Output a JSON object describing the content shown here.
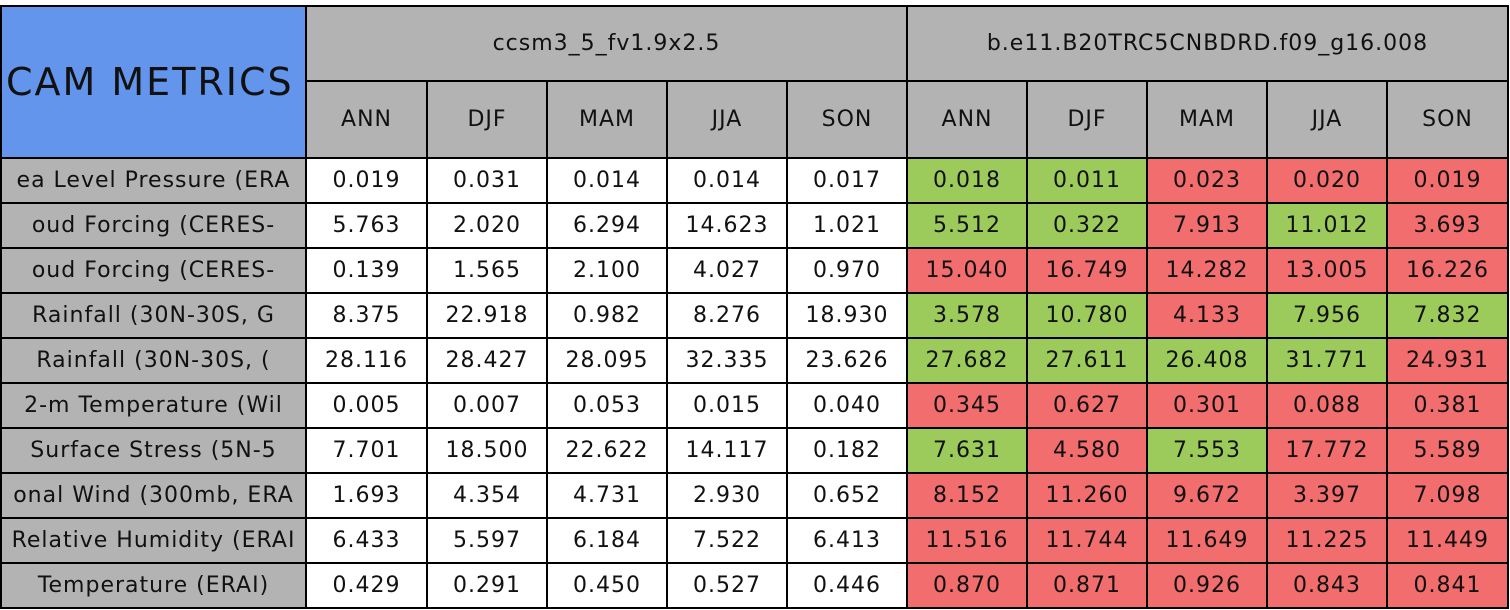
{
  "table": {
    "title": "CAM METRICS",
    "models": [
      {
        "name": "ccsm3_5_fv1.9x2.5",
        "seasons": [
          "ANN",
          "DJF",
          "MAM",
          "JJA",
          "SON"
        ]
      },
      {
        "name": "b.e11.B20TRC5CNBDRD.f09_g16.008",
        "seasons": [
          "ANN",
          "DJF",
          "MAM",
          "JJA",
          "SON"
        ]
      }
    ],
    "rows": [
      {
        "label": "ea Level Pressure (ERA",
        "values": [
          "0.019",
          "0.031",
          "0.014",
          "0.014",
          "0.017",
          "0.018",
          "0.011",
          "0.023",
          "0.020",
          "0.019"
        ],
        "colors": [
          "#ffffff",
          "#ffffff",
          "#ffffff",
          "#ffffff",
          "#ffffff",
          "#9ccb5c",
          "#9ccb5c",
          "#f26d6d",
          "#f26d6d",
          "#f26d6d"
        ]
      },
      {
        "label": "oud Forcing (CERES-",
        "values": [
          "5.763",
          "2.020",
          "6.294",
          "14.623",
          "1.021",
          "5.512",
          "0.322",
          "7.913",
          "11.012",
          "3.693"
        ],
        "colors": [
          "#ffffff",
          "#ffffff",
          "#ffffff",
          "#ffffff",
          "#ffffff",
          "#9ccb5c",
          "#9ccb5c",
          "#f26d6d",
          "#9ccb5c",
          "#f26d6d"
        ]
      },
      {
        "label": "oud Forcing (CERES-",
        "values": [
          "0.139",
          "1.565",
          "2.100",
          "4.027",
          "0.970",
          "15.040",
          "16.749",
          "14.282",
          "13.005",
          "16.226"
        ],
        "colors": [
          "#ffffff",
          "#ffffff",
          "#ffffff",
          "#ffffff",
          "#ffffff",
          "#f26d6d",
          "#f26d6d",
          "#f26d6d",
          "#f26d6d",
          "#f26d6d"
        ]
      },
      {
        "label": "Rainfall (30N-30S, G",
        "values": [
          "8.375",
          "22.918",
          "0.982",
          "8.276",
          "18.930",
          "3.578",
          "10.780",
          "4.133",
          "7.956",
          "7.832"
        ],
        "colors": [
          "#ffffff",
          "#ffffff",
          "#ffffff",
          "#ffffff",
          "#ffffff",
          "#9ccb5c",
          "#9ccb5c",
          "#f26d6d",
          "#9ccb5c",
          "#9ccb5c"
        ]
      },
      {
        "label": "Rainfall (30N-30S, (",
        "values": [
          "28.116",
          "28.427",
          "28.095",
          "32.335",
          "23.626",
          "27.682",
          "27.611",
          "26.408",
          "31.771",
          "24.931"
        ],
        "colors": [
          "#ffffff",
          "#ffffff",
          "#ffffff",
          "#ffffff",
          "#ffffff",
          "#9ccb5c",
          "#9ccb5c",
          "#9ccb5c",
          "#9ccb5c",
          "#f26d6d"
        ]
      },
      {
        "label": "2-m Temperature (Wil",
        "values": [
          "0.005",
          "0.007",
          "0.053",
          "0.015",
          "0.040",
          "0.345",
          "0.627",
          "0.301",
          "0.088",
          "0.381"
        ],
        "colors": [
          "#ffffff",
          "#ffffff",
          "#ffffff",
          "#ffffff",
          "#ffffff",
          "#f26d6d",
          "#f26d6d",
          "#f26d6d",
          "#f26d6d",
          "#f26d6d"
        ]
      },
      {
        "label": "Surface Stress (5N-5",
        "values": [
          "7.701",
          "18.500",
          "22.622",
          "14.117",
          "0.182",
          "7.631",
          "4.580",
          "7.553",
          "17.772",
          "5.589"
        ],
        "colors": [
          "#ffffff",
          "#ffffff",
          "#ffffff",
          "#ffffff",
          "#ffffff",
          "#9ccb5c",
          "#f26d6d",
          "#9ccb5c",
          "#f26d6d",
          "#f26d6d"
        ]
      },
      {
        "label": "onal Wind (300mb, ERA",
        "values": [
          "1.693",
          "4.354",
          "4.731",
          "2.930",
          "0.652",
          "8.152",
          "11.260",
          "9.672",
          "3.397",
          "7.098"
        ],
        "colors": [
          "#ffffff",
          "#ffffff",
          "#ffffff",
          "#ffffff",
          "#ffffff",
          "#f26d6d",
          "#f26d6d",
          "#f26d6d",
          "#f26d6d",
          "#f26d6d"
        ]
      },
      {
        "label": "Relative Humidity (ERAI",
        "values": [
          "6.433",
          "5.597",
          "6.184",
          "7.522",
          "6.413",
          "11.516",
          "11.744",
          "11.649",
          "11.225",
          "11.449"
        ],
        "colors": [
          "#ffffff",
          "#ffffff",
          "#ffffff",
          "#ffffff",
          "#ffffff",
          "#f26d6d",
          "#f26d6d",
          "#f26d6d",
          "#f26d6d",
          "#f26d6d"
        ]
      },
      {
        "label": "Temperature (ERAI)",
        "values": [
          "0.429",
          "0.291",
          "0.450",
          "0.527",
          "0.446",
          "0.870",
          "0.871",
          "0.926",
          "0.843",
          "0.841"
        ],
        "colors": [
          "#ffffff",
          "#ffffff",
          "#ffffff",
          "#ffffff",
          "#ffffff",
          "#f26d6d",
          "#f26d6d",
          "#f26d6d",
          "#f26d6d",
          "#f26d6d"
        ]
      }
    ]
  }
}
